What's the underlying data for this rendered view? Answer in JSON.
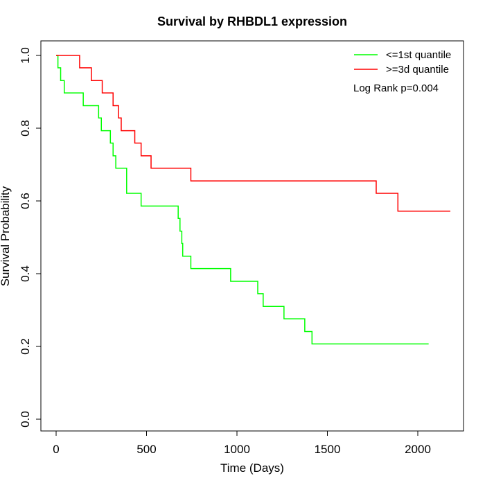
{
  "chart_data": {
    "type": "line",
    "step": true,
    "title": "Survival by RHBDL1 expression",
    "xlabel": "Time (Days)",
    "ylabel": "Survival Probability",
    "xlim": [
      0,
      2180
    ],
    "ylim": [
      0,
      1
    ],
    "x_ticks": [
      0,
      500,
      1000,
      1500,
      2000
    ],
    "x_tick_labels": [
      "0",
      "500",
      "1000",
      "1500",
      "2000"
    ],
    "y_ticks": [
      0,
      0.2,
      0.4,
      0.6,
      0.8,
      1.0
    ],
    "y_tick_labels": [
      "0.0",
      "0.2",
      "0.4",
      "0.6",
      "0.8",
      "1.0"
    ],
    "grid": false,
    "legend_position": "top-right",
    "annotation": "Log Rank p=0.004",
    "series": [
      {
        "name": "<=1st quantile",
        "color": "#00ff00",
        "points": [
          [
            0,
            1.0
          ],
          [
            10,
            0.966
          ],
          [
            25,
            0.931
          ],
          [
            45,
            0.897
          ],
          [
            150,
            0.862
          ],
          [
            235,
            0.828
          ],
          [
            250,
            0.793
          ],
          [
            300,
            0.759
          ],
          [
            315,
            0.724
          ],
          [
            330,
            0.69
          ],
          [
            390,
            0.621
          ],
          [
            470,
            0.586
          ],
          [
            675,
            0.552
          ],
          [
            685,
            0.517
          ],
          [
            695,
            0.483
          ],
          [
            700,
            0.448
          ],
          [
            745,
            0.414
          ],
          [
            965,
            0.379
          ],
          [
            1115,
            0.345
          ],
          [
            1145,
            0.31
          ],
          [
            1260,
            0.276
          ],
          [
            1375,
            0.241
          ],
          [
            1415,
            0.207
          ],
          [
            2060,
            0.207
          ]
        ]
      },
      {
        "name": ">=3d quantile",
        "color": "#ff0000",
        "points": [
          [
            0,
            1.0
          ],
          [
            130,
            0.966
          ],
          [
            195,
            0.931
          ],
          [
            255,
            0.897
          ],
          [
            315,
            0.862
          ],
          [
            345,
            0.828
          ],
          [
            360,
            0.793
          ],
          [
            435,
            0.759
          ],
          [
            470,
            0.724
          ],
          [
            525,
            0.69
          ],
          [
            745,
            0.655
          ],
          [
            1770,
            0.621
          ],
          [
            1890,
            0.572
          ],
          [
            2180,
            0.572
          ]
        ]
      }
    ]
  }
}
